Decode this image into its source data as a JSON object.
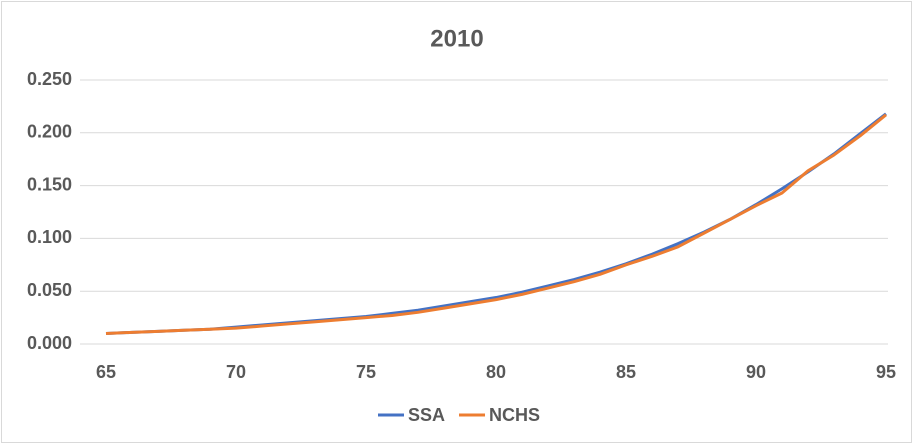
{
  "chart_data": {
    "type": "line",
    "title": "2010",
    "x": [
      65,
      66,
      67,
      68,
      69,
      70,
      71,
      72,
      73,
      74,
      75,
      76,
      77,
      78,
      79,
      80,
      81,
      82,
      83,
      84,
      85,
      86,
      87,
      88,
      89,
      90,
      91,
      92,
      93,
      94,
      95
    ],
    "series": [
      {
        "name": "SSA",
        "color": "#4472c4",
        "values": [
          0.01,
          0.011,
          0.012,
          0.013,
          0.014,
          0.016,
          0.018,
          0.02,
          0.022,
          0.024,
          0.026,
          0.029,
          0.032,
          0.036,
          0.04,
          0.044,
          0.049,
          0.055,
          0.061,
          0.068,
          0.076,
          0.085,
          0.095,
          0.106,
          0.118,
          0.132,
          0.147,
          0.163,
          0.18,
          0.199,
          0.218
        ]
      },
      {
        "name": "NCHS",
        "color": "#ed7d31",
        "values": [
          0.01,
          0.011,
          0.012,
          0.013,
          0.014,
          0.015,
          0.017,
          0.019,
          0.021,
          0.023,
          0.025,
          0.027,
          0.03,
          0.034,
          0.038,
          0.042,
          0.047,
          0.053,
          0.059,
          0.066,
          0.075,
          0.083,
          0.092,
          0.105,
          0.118,
          0.131,
          0.143,
          0.164,
          0.179,
          0.197,
          0.217
        ]
      }
    ],
    "xlim": [
      65,
      95
    ],
    "xticks": [
      65,
      70,
      75,
      80,
      85,
      90,
      95
    ],
    "ylim": [
      0,
      0.25
    ],
    "yticks": [
      {
        "value": 0,
        "label": "0.000"
      },
      {
        "value": 0.05,
        "label": "0.050"
      },
      {
        "value": 0.1,
        "label": "0.100"
      },
      {
        "value": 0.15,
        "label": "0.150"
      },
      {
        "value": 0.2,
        "label": "0.200"
      },
      {
        "value": 0.25,
        "label": "0.250"
      }
    ],
    "grid": true,
    "legend": "bottom"
  }
}
